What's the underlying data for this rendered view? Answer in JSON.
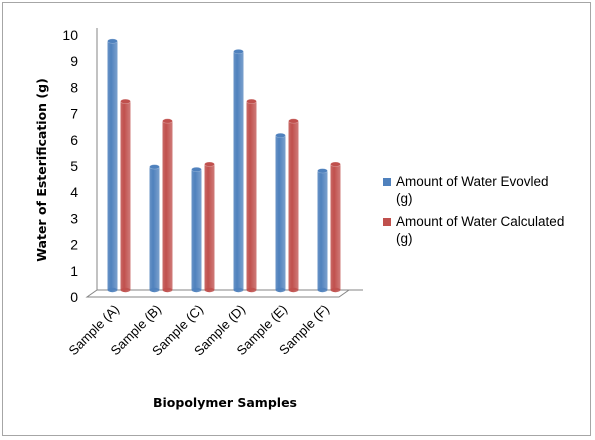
{
  "chart_data": {
    "type": "bar",
    "title": "",
    "xlabel": "Biopolymer Samples",
    "ylabel": "Water of Esterification (g)",
    "categories": [
      "Sample (A)",
      "Sample (B)",
      "Sample (C)",
      "Sample (D)",
      "Sample (E)",
      "Sample (F)"
    ],
    "series": [
      {
        "name": "Amount of Water Evovled (g)",
        "name_lines": [
          "Amount of Water Evovled",
          "(g)"
        ],
        "color": "#4f81bd",
        "values": [
          9.5,
          4.7,
          4.6,
          9.1,
          5.9,
          4.55
        ]
      },
      {
        "name": "Amount of Water Calculated (g)",
        "name_lines": [
          "Amount of Water Calculated",
          "(g)"
        ],
        "color": "#c0504d",
        "values": [
          7.2,
          6.45,
          4.8,
          7.2,
          6.45,
          4.8
        ]
      }
    ],
    "ylim": [
      0,
      10
    ],
    "yticks": [
      0,
      1,
      2,
      3,
      4,
      5,
      6,
      7,
      8,
      9,
      10
    ],
    "grid": false,
    "legend_position": "right",
    "style": "3d-cylinder"
  }
}
